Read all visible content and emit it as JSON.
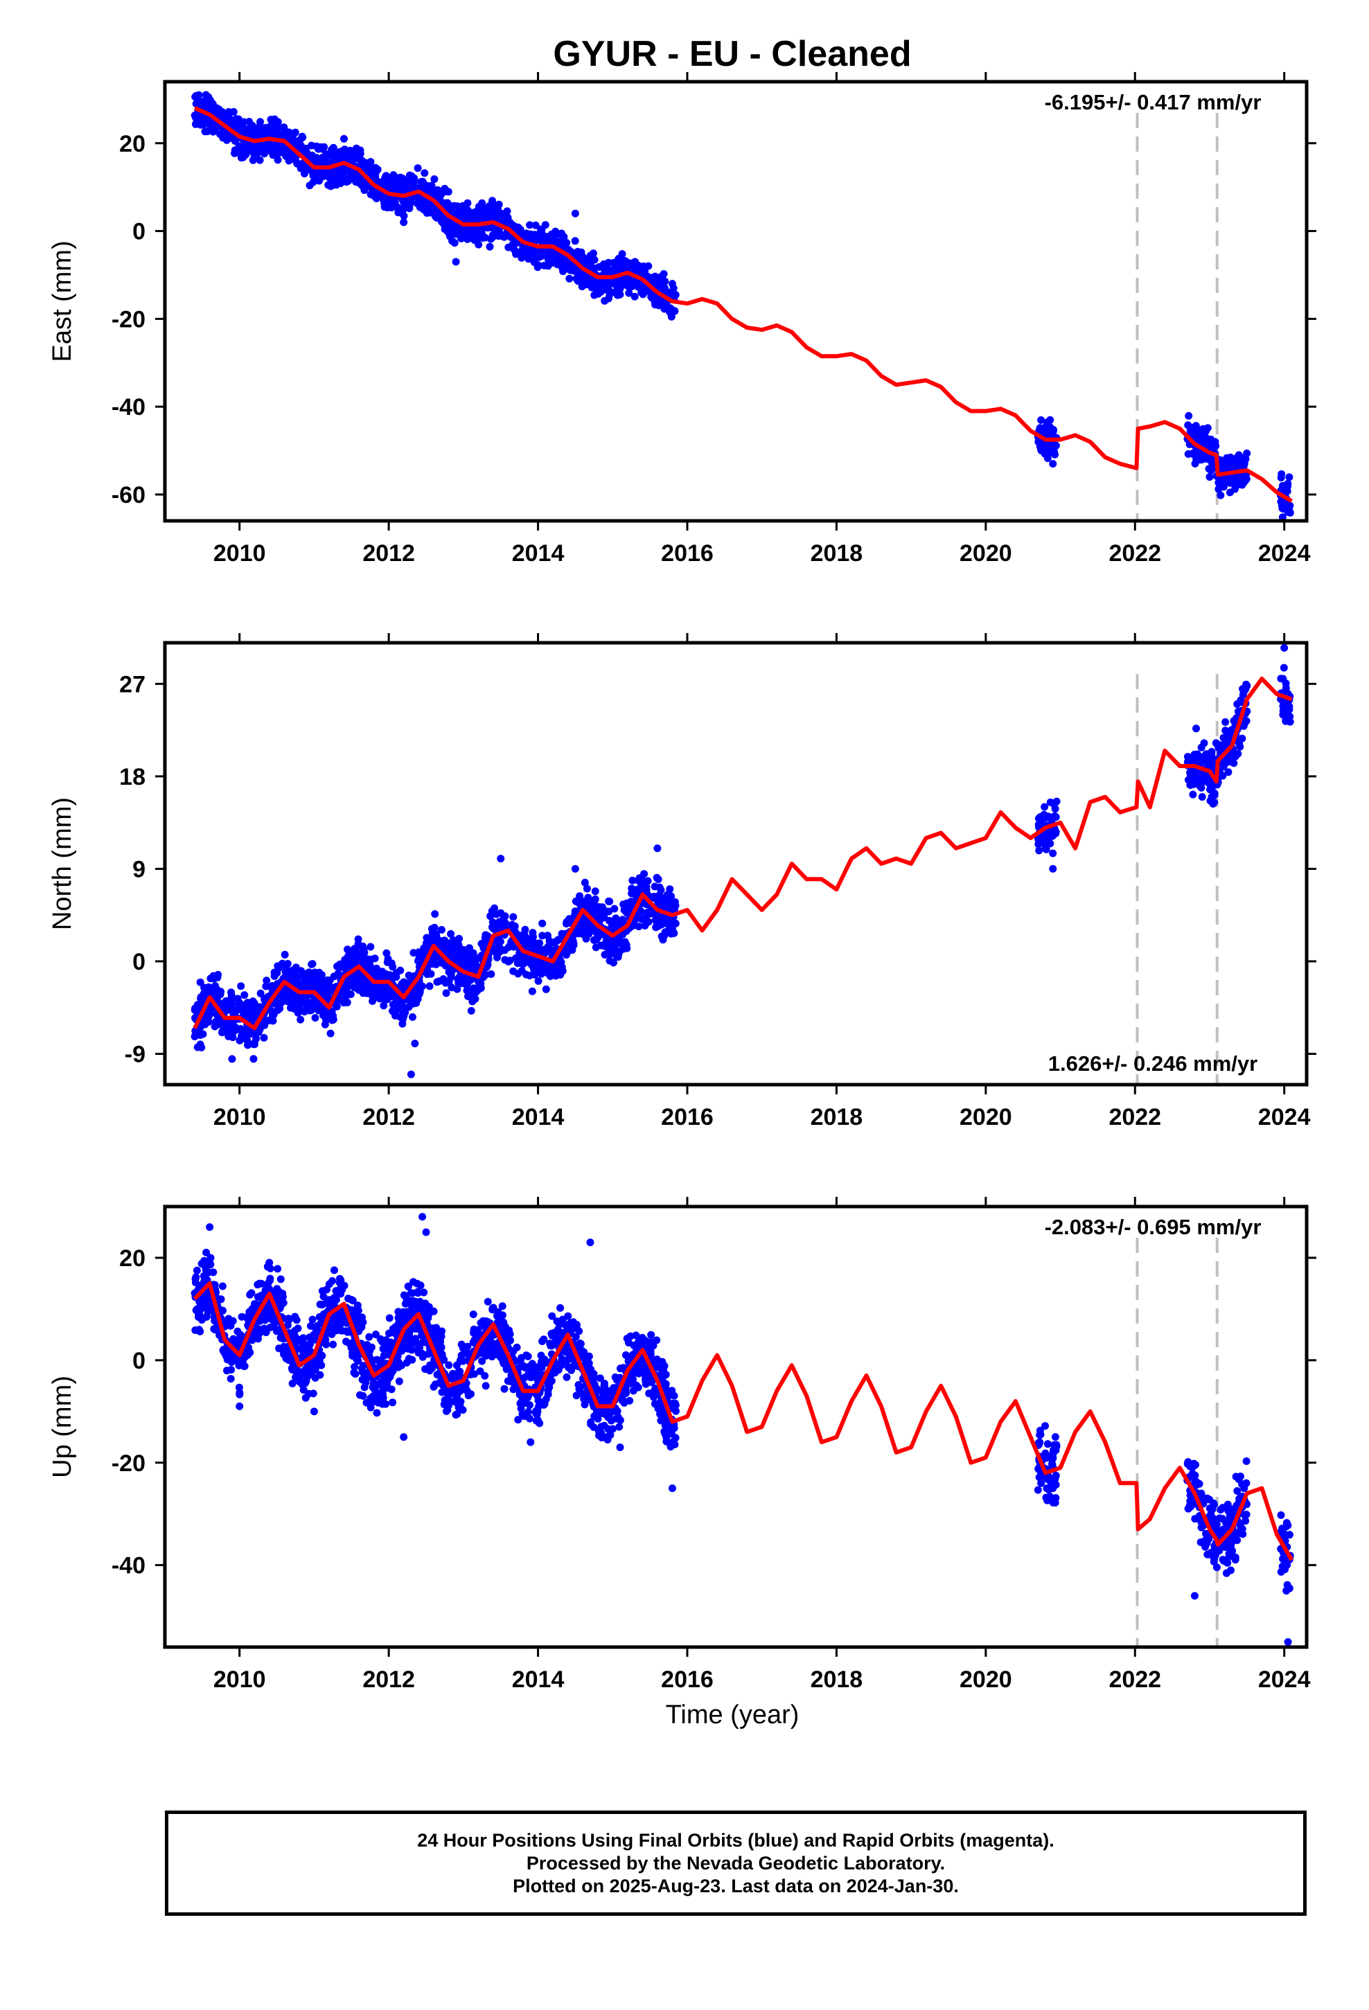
{
  "title": "GYUR  - EU - Cleaned",
  "xlabel": "Time (year)",
  "footer": [
    "24 Hour Positions Using Final Orbits (blue) and Rapid Orbits (magenta).",
    "Processed by the Nevada Geodetic Laboratory.",
    "Plotted on 2025-Aug-23. Last data on 2024-Jan-30."
  ],
  "colors": {
    "data": "#0000ff",
    "model": "#ff0000",
    "step": "#c0c0c0",
    "frame": "#000000"
  },
  "chart_data": [
    {
      "type": "scatter",
      "ylabel": "East (mm)",
      "xlim": [
        2009.0,
        2024.3
      ],
      "ylim": [
        -66,
        34
      ],
      "xticks": [
        2010,
        2012,
        2014,
        2016,
        2018,
        2020,
        2022,
        2024
      ],
      "yticks": [
        -60,
        -40,
        -20,
        0,
        20
      ],
      "rate_label": "-6.195+/- 0.417 mm/yr",
      "rate_position": "top-right",
      "steps": [
        2022.03,
        2023.1
      ],
      "model": {
        "name": "model",
        "x": [
          2009.4,
          2009.6,
          2009.8,
          2010.0,
          2010.2,
          2010.4,
          2010.6,
          2010.8,
          2011.0,
          2011.2,
          2011.4,
          2011.6,
          2011.8,
          2012.0,
          2012.2,
          2012.4,
          2012.6,
          2012.8,
          2013.0,
          2013.2,
          2013.4,
          2013.6,
          2013.8,
          2014.0,
          2014.2,
          2014.4,
          2014.6,
          2014.8,
          2015.0,
          2015.2,
          2015.4,
          2015.6,
          2015.8,
          2016.0,
          2016.2,
          2016.4,
          2016.6,
          2016.8,
          2017.0,
          2017.2,
          2017.4,
          2017.6,
          2017.8,
          2018.0,
          2018.2,
          2018.4,
          2018.6,
          2018.8,
          2019.0,
          2019.2,
          2019.4,
          2019.6,
          2019.8,
          2020.0,
          2020.2,
          2020.4,
          2020.6,
          2020.8,
          2021.0,
          2021.2,
          2021.4,
          2021.6,
          2021.8,
          2022.02,
          2022.04,
          2022.2,
          2022.4,
          2022.6,
          2022.8,
          2023.0,
          2023.09,
          2023.11,
          2023.3,
          2023.5,
          2023.7,
          2023.9,
          2024.1
        ],
        "y": [
          28,
          26.5,
          24,
          21.5,
          20.5,
          21,
          20.5,
          17.5,
          14.5,
          14.5,
          15.5,
          14,
          10.5,
          8.5,
          8,
          9,
          7,
          3.5,
          1.5,
          1.5,
          2,
          0.5,
          -2.5,
          -3.5,
          -3.5,
          -5.5,
          -8.5,
          -10.5,
          -10.5,
          -9.5,
          -11,
          -14,
          -16,
          -16.5,
          -15.5,
          -16.5,
          -20,
          -22,
          -22.5,
          -21.5,
          -23,
          -26.5,
          -28.5,
          -28.5,
          -28,
          -29.5,
          -33,
          -35,
          -34.5,
          -34,
          -35.5,
          -39,
          -41,
          -41,
          -40.5,
          -42,
          -45.5,
          -47.5,
          -47.5,
          -46.5,
          -48,
          -51.5,
          -53,
          -54,
          -45,
          -44.5,
          -43.5,
          -45,
          -48.5,
          -50.5,
          -51,
          -55.5,
          -55,
          -54.5,
          -56.5,
          -59.5,
          -61.5
        ]
      },
      "data_segments": [
        [
          2009.4,
          2015.85
        ],
        [
          2020.7,
          2020.95
        ],
        [
          2022.7,
          2023.5
        ],
        [
          2023.95,
          2024.08
        ]
      ],
      "data_points": [
        [
          2009.45,
          30
        ],
        [
          2009.55,
          31
        ],
        [
          2009.75,
          26
        ],
        [
          2010.3,
          19
        ],
        [
          2011.0,
          13
        ],
        [
          2011.4,
          21
        ],
        [
          2012.0,
          12
        ],
        [
          2012.2,
          2
        ],
        [
          2012.9,
          -7
        ],
        [
          2013.5,
          4
        ],
        [
          2014.5,
          4
        ],
        [
          2014.9,
          -13
        ],
        [
          2015.3,
          -7
        ],
        [
          2015.8,
          -12
        ],
        [
          2020.9,
          -53
        ],
        [
          2023.0,
          -56
        ],
        [
          2023.4,
          -54
        ],
        [
          2024.05,
          -64
        ]
      ]
    },
    {
      "type": "scatter",
      "ylabel": "North (mm)",
      "xlim": [
        2009.0,
        2024.3
      ],
      "ylim": [
        -12,
        31
      ],
      "xticks": [
        2010,
        2012,
        2014,
        2016,
        2018,
        2020,
        2022,
        2024
      ],
      "yticks": [
        -9,
        0,
        9,
        18,
        27
      ],
      "rate_label": "1.626+/- 0.246 mm/yr",
      "rate_position": "bottom-right",
      "steps": [
        2022.03,
        2023.1
      ],
      "model": {
        "name": "model",
        "x": [
          2009.4,
          2009.6,
          2009.8,
          2010.0,
          2010.2,
          2010.4,
          2010.6,
          2010.8,
          2011.0,
          2011.2,
          2011.4,
          2011.6,
          2011.8,
          2012.0,
          2012.2,
          2012.4,
          2012.6,
          2012.8,
          2013.0,
          2013.2,
          2013.4,
          2013.6,
          2013.8,
          2014.0,
          2014.2,
          2014.4,
          2014.6,
          2014.8,
          2015.0,
          2015.2,
          2015.4,
          2015.6,
          2015.8,
          2016.0,
          2016.2,
          2016.4,
          2016.6,
          2016.8,
          2017.0,
          2017.2,
          2017.4,
          2017.6,
          2017.8,
          2018.0,
          2018.2,
          2018.4,
          2018.6,
          2018.8,
          2019.0,
          2019.2,
          2019.4,
          2019.6,
          2019.8,
          2020.0,
          2020.2,
          2020.4,
          2020.6,
          2020.8,
          2021.0,
          2021.2,
          2021.4,
          2021.6,
          2021.8,
          2022.02,
          2022.04,
          2022.2,
          2022.4,
          2022.6,
          2022.8,
          2023.0,
          2023.09,
          2023.11,
          2023.3,
          2023.5,
          2023.7,
          2023.9,
          2024.1
        ],
        "y": [
          -6.5,
          -3.5,
          -5.5,
          -5.5,
          -6.5,
          -4,
          -2,
          -3,
          -3,
          -4.5,
          -1.5,
          -0.5,
          -2,
          -2,
          -3.5,
          -1.5,
          1.5,
          0,
          -1,
          -1.5,
          2.5,
          3,
          1,
          0.5,
          0,
          2.5,
          5,
          3.5,
          2.5,
          3.5,
          6.5,
          5,
          4.5,
          5,
          3,
          5,
          8,
          6.5,
          5,
          6.5,
          9.5,
          8,
          8,
          7,
          10,
          11,
          9.5,
          10,
          9.5,
          12,
          12.5,
          11,
          11.5,
          12,
          14.5,
          13,
          12,
          13,
          13.5,
          11,
          15.5,
          16,
          14.5,
          15,
          17.5,
          15,
          20.5,
          19,
          19,
          18.5,
          17.5,
          19.5,
          21,
          25.5,
          27.5,
          26,
          25.5
        ]
      },
      "data_segments": [
        [
          2009.4,
          2015.85
        ],
        [
          2020.7,
          2020.95
        ],
        [
          2022.7,
          2023.5
        ],
        [
          2023.95,
          2024.08
        ]
      ],
      "data_points": [
        [
          2009.9,
          -9.5
        ],
        [
          2010.2,
          -8
        ],
        [
          2012.3,
          -11
        ],
        [
          2012.35,
          -8
        ],
        [
          2013.5,
          10
        ],
        [
          2014.5,
          9
        ],
        [
          2015.6,
          11
        ],
        [
          2020.9,
          9
        ],
        [
          2022.9,
          16
        ],
        [
          2023.3,
          22
        ],
        [
          2024.0,
          30.5
        ],
        [
          2024.05,
          24
        ]
      ]
    },
    {
      "type": "scatter",
      "ylabel": "Up (mm)",
      "xlim": [
        2009.0,
        2024.3
      ],
      "ylim": [
        -56,
        30
      ],
      "xticks": [
        2010,
        2012,
        2014,
        2016,
        2018,
        2020,
        2022,
        2024
      ],
      "yticks": [
        -40,
        -20,
        0,
        20
      ],
      "rate_label": "-2.083+/- 0.695 mm/yr",
      "rate_position": "top-right",
      "steps": [
        2022.03,
        2023.1
      ],
      "model": {
        "name": "model",
        "x": [
          2009.4,
          2009.6,
          2009.8,
          2010.0,
          2010.2,
          2010.4,
          2010.6,
          2010.8,
          2011.0,
          2011.2,
          2011.4,
          2011.6,
          2011.8,
          2012.0,
          2012.2,
          2012.4,
          2012.6,
          2012.8,
          2013.0,
          2013.2,
          2013.4,
          2013.6,
          2013.8,
          2014.0,
          2014.2,
          2014.4,
          2014.6,
          2014.8,
          2015.0,
          2015.2,
          2015.4,
          2015.6,
          2015.8,
          2016.0,
          2016.2,
          2016.4,
          2016.6,
          2016.8,
          2017.0,
          2017.2,
          2017.4,
          2017.6,
          2017.8,
          2018.0,
          2018.2,
          2018.4,
          2018.6,
          2018.8,
          2019.0,
          2019.2,
          2019.4,
          2019.6,
          2019.8,
          2020.0,
          2020.2,
          2020.4,
          2020.6,
          2020.8,
          2021.0,
          2021.2,
          2021.4,
          2021.6,
          2021.8,
          2022.02,
          2022.04,
          2022.2,
          2022.4,
          2022.6,
          2022.8,
          2023.0,
          2023.09,
          2023.11,
          2023.3,
          2023.5,
          2023.7,
          2023.9,
          2024.1
        ],
        "y": [
          12,
          15,
          4,
          1,
          8,
          13,
          6,
          -1,
          1,
          9,
          11,
          3,
          -3,
          -1,
          6,
          9,
          2,
          -5,
          -4,
          3,
          7,
          1,
          -6,
          -6,
          0,
          5,
          -2,
          -9,
          -9,
          -2,
          2,
          -4,
          -12,
          -11,
          -4,
          1,
          -5,
          -14,
          -13,
          -6,
          -1,
          -7,
          -16,
          -15,
          -8,
          -3,
          -9,
          -18,
          -17,
          -10,
          -5,
          -11,
          -20,
          -19,
          -12,
          -8,
          -15,
          -22,
          -21,
          -14,
          -10,
          -16,
          -24,
          -24,
          -33,
          -31,
          -25,
          -21,
          -26,
          -33,
          -35,
          -36,
          -33,
          -26,
          -25,
          -34,
          -39
        ]
      },
      "data_segments": [
        [
          2009.4,
          2015.85
        ],
        [
          2020.7,
          2020.95
        ],
        [
          2022.7,
          2023.5
        ],
        [
          2023.95,
          2024.08
        ]
      ],
      "data_points": [
        [
          2009.6,
          26
        ],
        [
          2010.0,
          -9
        ],
        [
          2011.0,
          -10
        ],
        [
          2012.2,
          -15
        ],
        [
          2012.45,
          28
        ],
        [
          2012.5,
          25
        ],
        [
          2013.3,
          -5
        ],
        [
          2013.9,
          -16
        ],
        [
          2014.7,
          23
        ],
        [
          2015.1,
          -17
        ],
        [
          2015.8,
          -25
        ],
        [
          2020.9,
          -25
        ],
        [
          2022.8,
          -46
        ],
        [
          2023.3,
          -38
        ],
        [
          2024.05,
          -55
        ]
      ]
    }
  ]
}
